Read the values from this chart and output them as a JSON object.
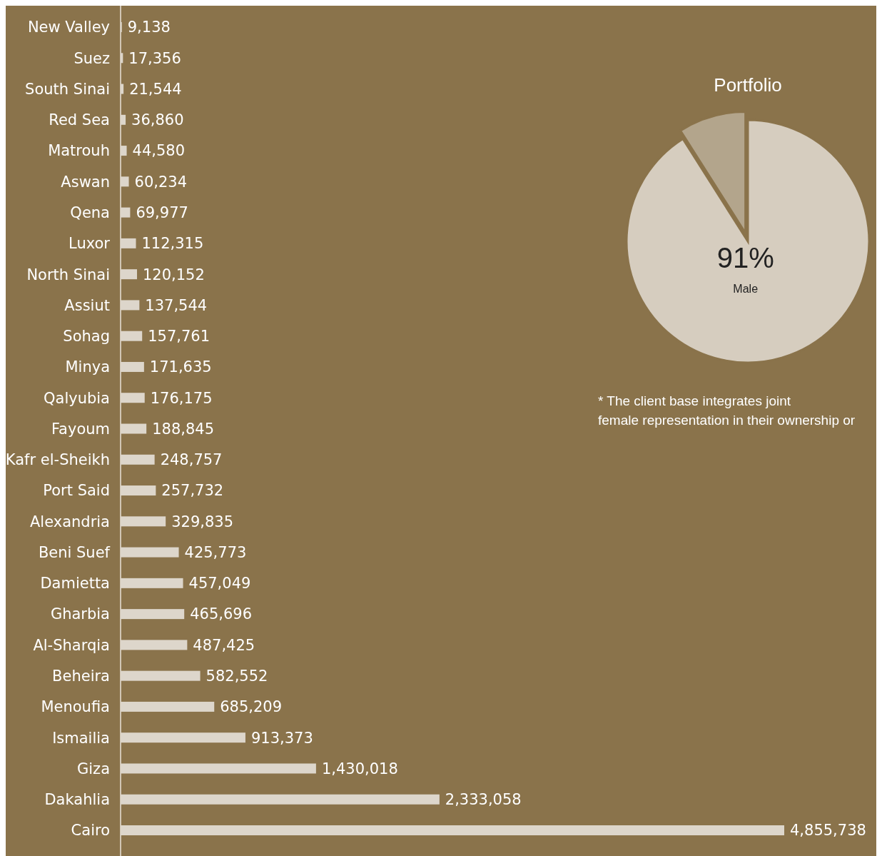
{
  "chart_data": [
    {
      "type": "bar",
      "orientation": "horizontal",
      "color": "#ddd6cb",
      "value_labels": [
        "9,138",
        "17,356",
        "21,544",
        "36,860",
        "44,580",
        "60,234",
        "69,977",
        "112,315",
        "120,152",
        "137,544",
        "157,761",
        "171,635",
        "176,175",
        "188,845",
        "248,757",
        "257,732",
        "329,835",
        "425,773",
        "457,049",
        "465,696",
        "487,425",
        "582,552",
        "685,209",
        "913,373",
        "1,430,018",
        "2,333,058",
        "4,855,738"
      ],
      "categories": [
        "New Valley",
        "Suez",
        "South Sinai",
        "Red Sea",
        "Matrouh",
        "Aswan",
        "Qena",
        "Luxor",
        "North Sinai",
        "Assiut",
        "Sohag",
        "Minya",
        "Qalyubia",
        "Fayoum",
        "Kafr el-Sheikh",
        "Port Said",
        "Alexandria",
        "Beni Suef",
        "Damietta",
        "Gharbia",
        "Al-Sharqia",
        "Beheira",
        "Menoufia",
        "Ismailia",
        "Giza",
        "Dakahlia",
        "Cairo"
      ],
      "values": [
        9138,
        17356,
        21544,
        36860,
        44580,
        60234,
        69977,
        112315,
        120152,
        137544,
        157761,
        171635,
        176175,
        188845,
        248757,
        257732,
        329835,
        425773,
        457049,
        465696,
        487425,
        582552,
        685209,
        913373,
        1430018,
        2333058,
        4855738
      ]
    },
    {
      "type": "pie",
      "title": "Portfolio",
      "categories": [
        "Male",
        null
      ],
      "values": [
        91,
        9
      ],
      "colors": [
        "#d6cdbf",
        "#b3a58c"
      ],
      "value_labels": [
        "91%",
        null
      ],
      "annotations": [
        "* The client base integrates joint",
        "female representation in their ownership or"
      ]
    }
  ]
}
